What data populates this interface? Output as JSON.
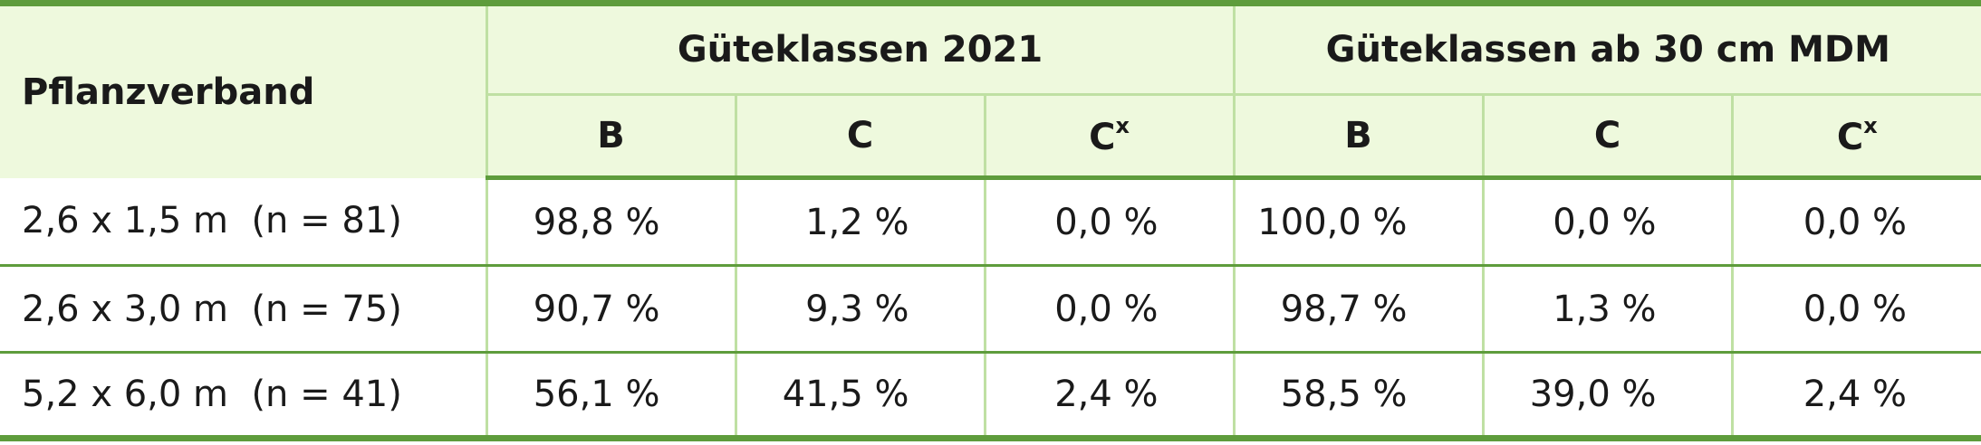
{
  "table": {
    "header": {
      "first": "Pflanzverband",
      "group1": "Güteklassen 2021",
      "group2": "Güteklassen ab 30 cm MDM",
      "sub": [
        {
          "base": "B"
        },
        {
          "base": "C"
        },
        {
          "base": "C",
          "sup": "x"
        },
        {
          "base": "B"
        },
        {
          "base": "C"
        },
        {
          "base": "C",
          "sup": "x"
        }
      ]
    },
    "rows": [
      [
        "2,6 x 1,5 m  (n = 81)",
        "98,8 %",
        "1,2 %",
        "0,0 %",
        "100,0 %",
        "0,0 %",
        "0,0 %"
      ],
      [
        "2,6 x 3,0 m  (n = 75)",
        "90,7 %",
        "9,3 %",
        "0,0 %",
        "98,7 %",
        "1,3 %",
        "0,0 %"
      ],
      [
        "5,2 x 6,0 m  (n = 41)",
        "56,1 %",
        "41,5 %",
        "2,4 %",
        "58,5 %",
        "39,0 %",
        "2,4 %"
      ]
    ]
  }
}
